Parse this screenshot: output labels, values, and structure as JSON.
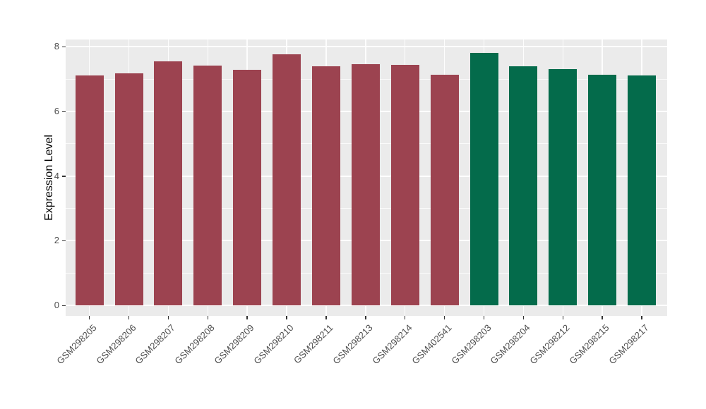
{
  "chart_data": {
    "type": "bar",
    "title": "",
    "xlabel": "",
    "ylabel": "Expression Level",
    "ylim": [
      0,
      8.2
    ],
    "yticks_major": [
      0,
      2,
      4,
      6,
      8
    ],
    "yticks_minor": [
      1,
      3,
      5,
      7
    ],
    "grid": true,
    "legend": "none",
    "categories": [
      "GSM298205",
      "GSM298206",
      "GSM298207",
      "GSM298208",
      "GSM298209",
      "GSM298210",
      "GSM298211",
      "GSM298213",
      "GSM298214",
      "GSM402541",
      "GSM298203",
      "GSM298204",
      "GSM298212",
      "GSM298215",
      "GSM298217"
    ],
    "values": [
      7.11,
      7.18,
      7.54,
      7.42,
      7.28,
      7.76,
      7.4,
      7.46,
      7.43,
      7.14,
      7.82,
      7.39,
      7.31,
      7.14,
      7.11
    ],
    "groups": [
      "maroon",
      "maroon",
      "maroon",
      "maroon",
      "maroon",
      "maroon",
      "maroon",
      "maroon",
      "maroon",
      "maroon",
      "green",
      "green",
      "green",
      "green",
      "green"
    ],
    "group_colors": {
      "maroon": "#9C4350",
      "green": "#046B4B"
    },
    "panel_background": "#EBEBEB",
    "grid_color": "#FFFFFF",
    "tick_label_color": "#4D4D4D",
    "axis_title_color": "#000000"
  }
}
